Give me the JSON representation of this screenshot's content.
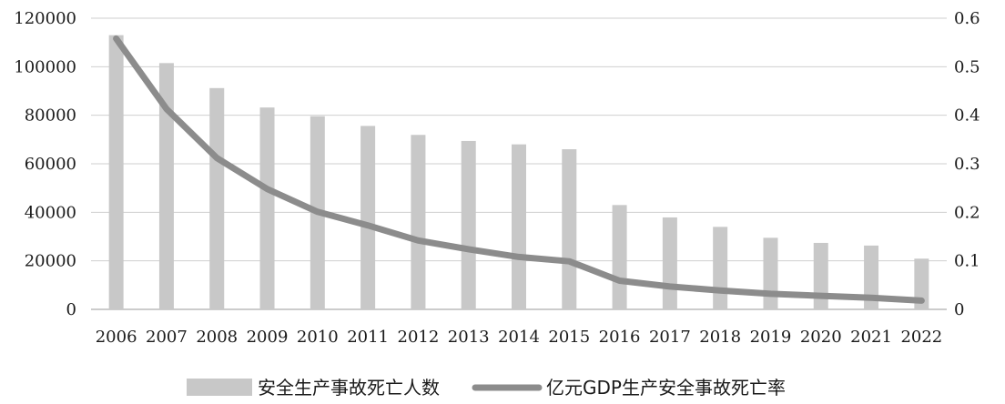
{
  "chart_data": {
    "type": "bar",
    "categories": [
      "2006",
      "2007",
      "2008",
      "2009",
      "2010",
      "2011",
      "2012",
      "2013",
      "2014",
      "2015",
      "2016",
      "2017",
      "2018",
      "2019",
      "2020",
      "2021",
      "2022"
    ],
    "series": [
      {
        "name": "安全生产事故死亡人数",
        "type": "bar",
        "axis": "left",
        "color": "#c8c8c8",
        "values": [
          113000,
          101500,
          91200,
          83200,
          79600,
          75600,
          71900,
          69400,
          68000,
          66000,
          43000,
          37900,
          34000,
          29500,
          27400,
          26300,
          20900
        ]
      },
      {
        "name": "亿元GDP生产安全事故死亡率",
        "type": "line",
        "axis": "right",
        "color": "#8c8c8c",
        "values": [
          0.558,
          0.413,
          0.312,
          0.248,
          0.201,
          0.173,
          0.142,
          0.124,
          0.108,
          0.099,
          0.059,
          0.047,
          0.039,
          0.032,
          0.028,
          0.024,
          0.018
        ]
      }
    ],
    "y_left": {
      "ylim": [
        0,
        120000
      ],
      "ticks": [
        "0",
        "20000",
        "40000",
        "60000",
        "80000",
        "100000",
        "120000"
      ]
    },
    "y_right": {
      "ylim": [
        0,
        0.6
      ],
      "ticks": [
        "0",
        "0.1",
        "0.2",
        "0.3",
        "0.4",
        "0.5",
        "0.6"
      ]
    },
    "grid": true,
    "legend_position": "bottom"
  }
}
